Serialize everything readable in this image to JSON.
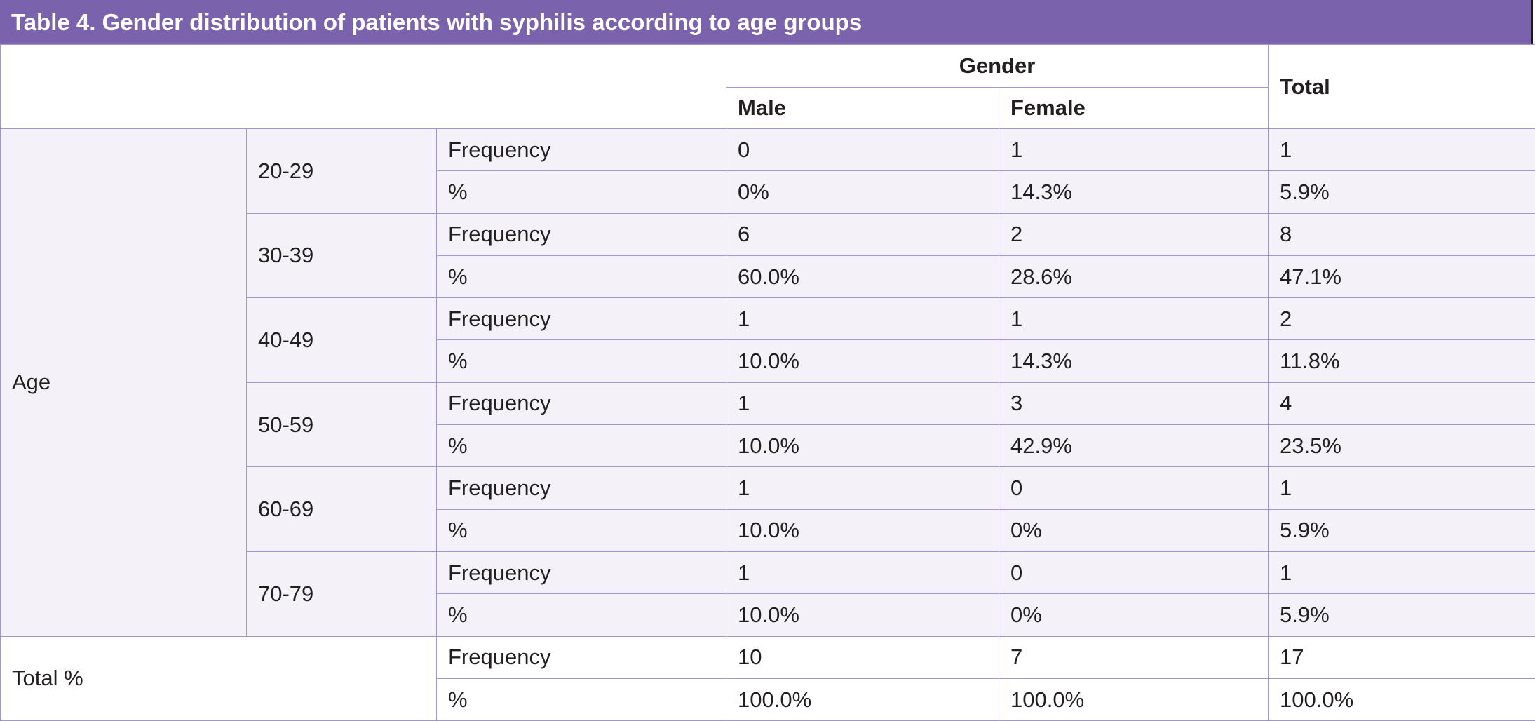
{
  "title": "Table 4. Gender distribution of patients with syphilis according to age groups",
  "header": {
    "gender": "Gender",
    "male": "Male",
    "female": "Female",
    "total": "Total"
  },
  "age_label": "Age",
  "groups": [
    {
      "range": "20-29",
      "frequency_label": "Frequency",
      "percent_label": "%",
      "frequency": {
        "male": "0",
        "female": "1",
        "total": "1"
      },
      "percent": {
        "male": "0%",
        "female": "14.3%",
        "total": "5.9%"
      }
    },
    {
      "range": "30-39",
      "frequency_label": "Frequency",
      "percent_label": "%",
      "frequency": {
        "male": "6",
        "female": "2",
        "total": "8"
      },
      "percent": {
        "male": "60.0%",
        "female": "28.6%",
        "total": "47.1%"
      }
    },
    {
      "range": "40-49",
      "frequency_label": "Frequency",
      "percent_label": "%",
      "frequency": {
        "male": "1",
        "female": "1",
        "total": "2"
      },
      "percent": {
        "male": "10.0%",
        "female": "14.3%",
        "total": "11.8%"
      }
    },
    {
      "range": "50-59",
      "frequency_label": "Frequency",
      "percent_label": "%",
      "frequency": {
        "male": "1",
        "female": "3",
        "total": "4"
      },
      "percent": {
        "male": "10.0%",
        "female": "42.9%",
        "total": "23.5%"
      }
    },
    {
      "range": "60-69",
      "frequency_label": "Frequency",
      "percent_label": "%",
      "frequency": {
        "male": "1",
        "female": "0",
        "total": "1"
      },
      "percent": {
        "male": "10.0%",
        "female": "0%",
        "total": "5.9%"
      }
    },
    {
      "range": "70-79",
      "frequency_label": "Frequency",
      "percent_label": "%",
      "frequency": {
        "male": "1",
        "female": "0",
        "total": "1"
      },
      "percent": {
        "male": "10.0%",
        "female": "0%",
        "total": "5.9%"
      }
    }
  ],
  "total_row": {
    "label": "Total %",
    "frequency_label": "Frequency",
    "percent_label": "%",
    "frequency": {
      "male": "10",
      "female": "7",
      "total": "17"
    },
    "percent": {
      "male": "100.0%",
      "female": "100.0%",
      "total": "100.0%"
    }
  },
  "colors": {
    "title_bar": "#7b62ac",
    "border": "#a397c9",
    "row_shade": "#f4f1f8"
  }
}
